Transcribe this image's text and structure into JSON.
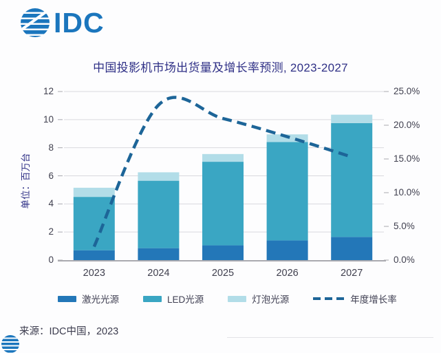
{
  "logo": {
    "text": "IDC"
  },
  "title": "中国投影机市场出货量及增长率预测, 2023-2027",
  "source": "来源：IDC中国，2023",
  "colors": {
    "idc_blue": "#1b76bd",
    "title": "#2f3086",
    "axis_text": "#40404f",
    "gridline": "#d9d9de",
    "baseline": "#a9a9af",
    "laser": "#2377b8",
    "led": "#3aa6c3",
    "bulb": "#b2dde8",
    "growth_line": "#1d6598"
  },
  "chart_data": {
    "type": "bar",
    "stacked": true,
    "title": "中国投影机市场出货量及增长率预测, 2023-2027",
    "categories": [
      "2023",
      "2024",
      "2025",
      "2026",
      "2027"
    ],
    "series": [
      {
        "name": "激光光源",
        "kind": "bar",
        "axis": "left",
        "color": "#2377b8",
        "values": [
          0.7,
          0.85,
          1.05,
          1.4,
          1.65
        ]
      },
      {
        "name": "LED光源",
        "kind": "bar",
        "axis": "left",
        "color": "#3aa6c3",
        "values": [
          3.8,
          4.8,
          5.95,
          7.0,
          8.1
        ]
      },
      {
        "name": "灯泡光源",
        "kind": "bar",
        "axis": "left",
        "color": "#b2dde8",
        "values": [
          0.65,
          0.6,
          0.55,
          0.55,
          0.6
        ]
      },
      {
        "name": "年度增长率",
        "kind": "line",
        "axis": "right",
        "color": "#1d6598",
        "style": "dashed",
        "unit": "%",
        "values": [
          2.0,
          23.0,
          21.0,
          18.3,
          15.3
        ]
      }
    ],
    "totals": [
      5.15,
      6.25,
      7.55,
      8.95,
      10.35
    ],
    "left_axis": {
      "title": "单位：百万台",
      "ticks": [
        0,
        2,
        4,
        6,
        8,
        10,
        12
      ],
      "range": [
        0,
        12
      ]
    },
    "right_axis": {
      "tick_labels": [
        "0.0%",
        "5.0%",
        "10.0%",
        "15.0%",
        "20.0%",
        "25.0%"
      ],
      "tick_values": [
        0,
        5,
        10,
        15,
        20,
        25
      ],
      "range": [
        0,
        25
      ]
    },
    "legend": [
      "激光光源",
      "LED光源",
      "灯泡光源",
      "年度增长率"
    ],
    "legend_position": "bottom",
    "grid": "horizontal"
  }
}
